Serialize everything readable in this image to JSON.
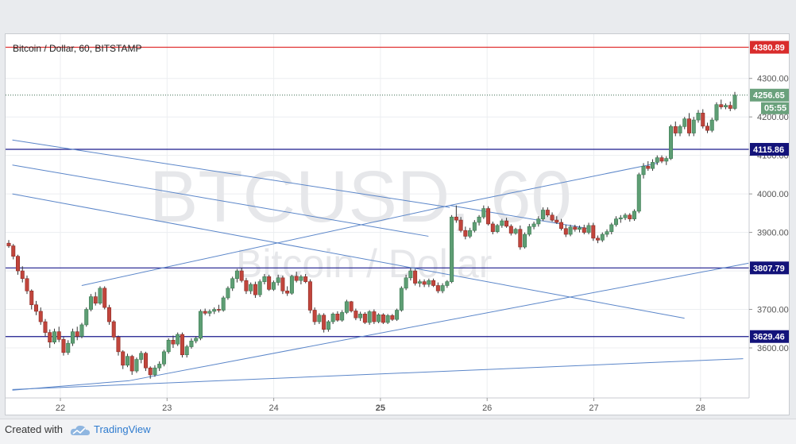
{
  "chart_data": {
    "type": "candlestick",
    "title": "Bitcoin / Dollar, 60, BITSTAMP",
    "watermark_symbol": "BTCUSD, 60",
    "watermark_name": "Bitcoin / Dollar",
    "x_tick_labels": [
      "22",
      "23",
      "24",
      "25",
      "26",
      "27",
      "28"
    ],
    "y_tick_labels": [
      "3600.00",
      "3700.00",
      "3800.00",
      "3900.00",
      "4000.00",
      "4100.00",
      "4200.00",
      "4300.00"
    ],
    "ylim": [
      3470,
      4415
    ],
    "last_price": "4256.65",
    "countdown": "05:55",
    "horizontal_levels": [
      {
        "label": "4380.89",
        "value": 4380.89,
        "color": "#e03030"
      },
      {
        "label": "4115.86",
        "value": 4115.86,
        "color": "#1a1a8c"
      },
      {
        "label": "3807.79",
        "value": 3807.79,
        "color": "#1a1a8c"
      },
      {
        "label": "3629.46",
        "value": 3629.46,
        "color": "#1a1a8c"
      }
    ],
    "trendlines": [
      {
        "from": [
          "21.55",
          4140
        ],
        "to": [
          "25.65",
          3965
        ]
      },
      {
        "from": [
          "21.55",
          4075
        ],
        "to": [
          "25.45",
          3890
        ]
      },
      {
        "from": [
          "21.55",
          4000
        ],
        "to": [
          "27.85",
          3677
        ]
      },
      {
        "from": [
          "22.2",
          3762
        ],
        "to": [
          "25.65",
          3970
        ]
      },
      {
        "from": [
          "25.65",
          3970
        ],
        "to": [
          "27.6",
          4080
        ]
      },
      {
        "from": [
          "25.65",
          3970
        ],
        "to": [
          "26.95",
          3910
        ]
      },
      {
        "from": [
          "21.55",
          3490
        ],
        "to": [
          "22.65",
          3515
        ]
      },
      {
        "from": [
          "22.65",
          3515
        ],
        "to": [
          "28.45",
          3820
        ]
      },
      {
        "from": [
          "21.55",
          3492
        ],
        "to": [
          "28.4",
          3572
        ]
      }
    ],
    "ohlc_hourly": [
      [
        3872,
        3880,
        3860,
        3865
      ],
      [
        3865,
        3870,
        3830,
        3838
      ],
      [
        3838,
        3842,
        3790,
        3800
      ],
      [
        3800,
        3812,
        3770,
        3780
      ],
      [
        3780,
        3788,
        3740,
        3748
      ],
      [
        3748,
        3752,
        3700,
        3712
      ],
      [
        3712,
        3722,
        3685,
        3695
      ],
      [
        3695,
        3705,
        3660,
        3668
      ],
      [
        3668,
        3675,
        3630,
        3640
      ],
      [
        3640,
        3648,
        3600,
        3615
      ],
      [
        3615,
        3650,
        3610,
        3642
      ],
      [
        3642,
        3655,
        3615,
        3622
      ],
      [
        3622,
        3628,
        3580,
        3588
      ],
      [
        3588,
        3620,
        3582,
        3612
      ],
      [
        3612,
        3650,
        3605,
        3642
      ],
      [
        3642,
        3655,
        3620,
        3630
      ],
      [
        3630,
        3665,
        3625,
        3660
      ],
      [
        3660,
        3705,
        3655,
        3700
      ],
      [
        3700,
        3740,
        3695,
        3733
      ],
      [
        3733,
        3745,
        3710,
        3716
      ],
      [
        3716,
        3760,
        3712,
        3755
      ],
      [
        3755,
        3760,
        3700,
        3705
      ],
      [
        3705,
        3712,
        3660,
        3668
      ],
      [
        3668,
        3672,
        3620,
        3628
      ],
      [
        3628,
        3632,
        3580,
        3590
      ],
      [
        3590,
        3594,
        3545,
        3555
      ],
      [
        3555,
        3585,
        3550,
        3578
      ],
      [
        3578,
        3582,
        3530,
        3540
      ],
      [
        3540,
        3575,
        3535,
        3570
      ],
      [
        3570,
        3592,
        3560,
        3586
      ],
      [
        3586,
        3590,
        3540,
        3548
      ],
      [
        3548,
        3552,
        3520,
        3530
      ],
      [
        3530,
        3555,
        3525,
        3548
      ],
      [
        3548,
        3565,
        3540,
        3558
      ],
      [
        3558,
        3595,
        3552,
        3590
      ],
      [
        3590,
        3625,
        3585,
        3620
      ],
      [
        3620,
        3632,
        3600,
        3610
      ],
      [
        3610,
        3640,
        3605,
        3635
      ],
      [
        3635,
        3640,
        3575,
        3582
      ],
      [
        3582,
        3608,
        3575,
        3603
      ],
      [
        3603,
        3625,
        3598,
        3618
      ],
      [
        3618,
        3630,
        3612,
        3625
      ],
      [
        3625,
        3700,
        3620,
        3695
      ],
      [
        3695,
        3702,
        3685,
        3690
      ],
      [
        3690,
        3700,
        3682,
        3695
      ],
      [
        3695,
        3705,
        3688,
        3700
      ],
      [
        3700,
        3712,
        3692,
        3698
      ],
      [
        3698,
        3735,
        3694,
        3730
      ],
      [
        3730,
        3760,
        3725,
        3755
      ],
      [
        3755,
        3785,
        3748,
        3780
      ],
      [
        3780,
        3805,
        3770,
        3800
      ],
      [
        3800,
        3808,
        3770,
        3775
      ],
      [
        3775,
        3782,
        3740,
        3748
      ],
      [
        3748,
        3770,
        3740,
        3765
      ],
      [
        3765,
        3772,
        3730,
        3738
      ],
      [
        3738,
        3778,
        3732,
        3772
      ],
      [
        3772,
        3792,
        3765,
        3785
      ],
      [
        3785,
        3790,
        3748,
        3752
      ],
      [
        3752,
        3775,
        3748,
        3770
      ],
      [
        3770,
        3790,
        3762,
        3782
      ],
      [
        3782,
        3788,
        3740,
        3748
      ],
      [
        3748,
        3760,
        3735,
        3742
      ],
      [
        3742,
        3790,
        3738,
        3786
      ],
      [
        3786,
        3798,
        3770,
        3775
      ],
      [
        3775,
        3790,
        3765,
        3785
      ],
      [
        3785,
        3792,
        3768,
        3772
      ],
      [
        3772,
        3778,
        3690,
        3698
      ],
      [
        3698,
        3705,
        3660,
        3668
      ],
      [
        3668,
        3690,
        3662,
        3685
      ],
      [
        3685,
        3690,
        3640,
        3648
      ],
      [
        3648,
        3672,
        3642,
        3668
      ],
      [
        3668,
        3692,
        3662,
        3688
      ],
      [
        3688,
        3695,
        3668,
        3672
      ],
      [
        3672,
        3698,
        3668,
        3692
      ],
      [
        3692,
        3725,
        3688,
        3720
      ],
      [
        3720,
        3722,
        3692,
        3696
      ],
      [
        3696,
        3702,
        3672,
        3678
      ],
      [
        3678,
        3694,
        3670,
        3688
      ],
      [
        3688,
        3693,
        3662,
        3666
      ],
      [
        3666,
        3698,
        3660,
        3694
      ],
      [
        3694,
        3700,
        3662,
        3668
      ],
      [
        3668,
        3690,
        3664,
        3686
      ],
      [
        3686,
        3690,
        3662,
        3666
      ],
      [
        3666,
        3688,
        3662,
        3684
      ],
      [
        3684,
        3688,
        3670,
        3674
      ],
      [
        3674,
        3702,
        3670,
        3698
      ],
      [
        3698,
        3760,
        3694,
        3755
      ],
      [
        3755,
        3790,
        3750,
        3782
      ],
      [
        3782,
        3808,
        3775,
        3800
      ],
      [
        3800,
        3805,
        3762,
        3768
      ],
      [
        3768,
        3778,
        3758,
        3772
      ],
      [
        3772,
        3778,
        3758,
        3765
      ],
      [
        3765,
        3780,
        3758,
        3775
      ],
      [
        3775,
        3780,
        3758,
        3762
      ],
      [
        3762,
        3770,
        3742,
        3748
      ],
      [
        3748,
        3768,
        3742,
        3762
      ],
      [
        3762,
        3776,
        3756,
        3772
      ],
      [
        3772,
        3945,
        3768,
        3940
      ],
      [
        3940,
        3970,
        3925,
        3932
      ],
      [
        3932,
        3940,
        3900,
        3905
      ],
      [
        3905,
        3915,
        3882,
        3890
      ],
      [
        3890,
        3912,
        3885,
        3905
      ],
      [
        3905,
        3932,
        3900,
        3926
      ],
      [
        3926,
        3945,
        3918,
        3940
      ],
      [
        3940,
        3970,
        3935,
        3962
      ],
      [
        3962,
        3968,
        3918,
        3922
      ],
      [
        3922,
        3928,
        3895,
        3902
      ],
      [
        3902,
        3922,
        3898,
        3918
      ],
      [
        3918,
        3935,
        3912,
        3930
      ],
      [
        3930,
        3938,
        3912,
        3916
      ],
      [
        3916,
        3921,
        3892,
        3898
      ],
      [
        3898,
        3912,
        3894,
        3908
      ],
      [
        3908,
        3918,
        3855,
        3862
      ],
      [
        3862,
        3900,
        3858,
        3895
      ],
      [
        3895,
        3922,
        3890,
        3915
      ],
      [
        3915,
        3928,
        3908,
        3922
      ],
      [
        3922,
        3942,
        3915,
        3935
      ],
      [
        3935,
        3965,
        3930,
        3958
      ],
      [
        3958,
        3965,
        3940,
        3945
      ],
      [
        3945,
        3952,
        3928,
        3932
      ],
      [
        3932,
        3942,
        3922,
        3926
      ],
      [
        3926,
        3935,
        3905,
        3910
      ],
      [
        3910,
        3920,
        3888,
        3895
      ],
      [
        3895,
        3920,
        3890,
        3914
      ],
      [
        3914,
        3920,
        3902,
        3908
      ],
      [
        3908,
        3918,
        3900,
        3912
      ],
      [
        3912,
        3920,
        3895,
        3900
      ],
      [
        3900,
        3925,
        3895,
        3918
      ],
      [
        3918,
        3925,
        3878,
        3885
      ],
      [
        3885,
        3892,
        3872,
        3880
      ],
      [
        3880,
        3900,
        3875,
        3895
      ],
      [
        3895,
        3908,
        3888,
        3902
      ],
      [
        3902,
        3925,
        3895,
        3920
      ],
      [
        3920,
        3942,
        3915,
        3935
      ],
      [
        3935,
        3945,
        3925,
        3938
      ],
      [
        3938,
        3950,
        3932,
        3945
      ],
      [
        3945,
        3950,
        3928,
        3935
      ],
      [
        3935,
        3960,
        3930,
        3955
      ],
      [
        3955,
        4055,
        3950,
        4050
      ],
      [
        4050,
        4080,
        4040,
        4072
      ],
      [
        4072,
        4085,
        4060,
        4066
      ],
      [
        4066,
        4090,
        4060,
        4082
      ],
      [
        4082,
        4100,
        4075,
        4094
      ],
      [
        4094,
        4100,
        4080,
        4085
      ],
      [
        4085,
        4098,
        4075,
        4092
      ],
      [
        4092,
        4180,
        4088,
        4175
      ],
      [
        4175,
        4188,
        4150,
        4158
      ],
      [
        4158,
        4180,
        4150,
        4175
      ],
      [
        4175,
        4200,
        4168,
        4195
      ],
      [
        4195,
        4210,
        4150,
        4158
      ],
      [
        4158,
        4200,
        4150,
        4192
      ],
      [
        4192,
        4218,
        4185,
        4210
      ],
      [
        4210,
        4220,
        4170,
        4176
      ],
      [
        4176,
        4185,
        4158,
        4165
      ],
      [
        4165,
        4198,
        4160,
        4192
      ],
      [
        4192,
        4238,
        4188,
        4232
      ],
      [
        4232,
        4245,
        4220,
        4226
      ],
      [
        4226,
        4235,
        4220,
        4230
      ],
      [
        4230,
        4240,
        4215,
        4222
      ],
      [
        4222,
        4265,
        4218,
        4256.65
      ]
    ]
  },
  "footer": {
    "created_with": "Created with",
    "brand": "TradingView"
  }
}
